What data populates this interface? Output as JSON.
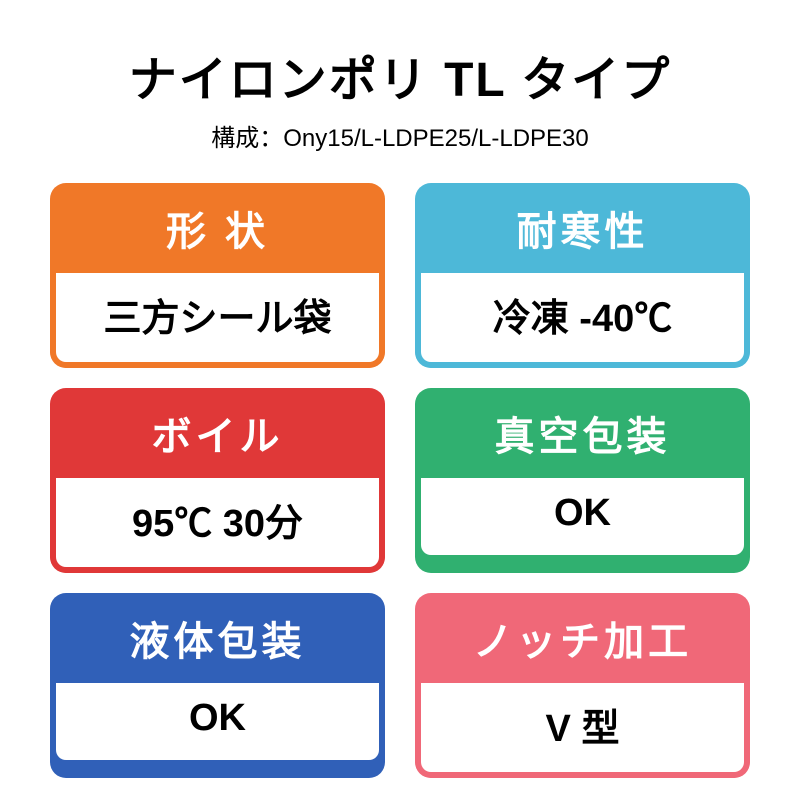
{
  "header": {
    "title": "ナイロンポリ TL タイプ",
    "subtitle": "構成：Ony15/L-LDPE25/L-LDPE30"
  },
  "cards": [
    {
      "label": "形 状",
      "value": "三方シール袋",
      "color": "#f07828"
    },
    {
      "label": "耐寒性",
      "value": "冷凍 -40℃",
      "color": "#4db8d8"
    },
    {
      "label": "ボイル",
      "value": "95℃ 30分",
      "color": "#e03838"
    },
    {
      "label": "真空包装",
      "value": "OK",
      "color": "#30b070"
    },
    {
      "label": "液体包装",
      "value": "OK",
      "color": "#3060b8"
    },
    {
      "label": "ノッチ加工",
      "value": "V 型",
      "color": "#f06878"
    }
  ],
  "styling": {
    "background_color": "#ffffff",
    "text_color": "#000000",
    "header_text_color": "#ffffff",
    "title_fontsize": 48,
    "subtitle_fontsize": 24,
    "card_label_fontsize": 40,
    "card_value_fontsize": 38,
    "border_radius": 16,
    "border_width": 6
  }
}
